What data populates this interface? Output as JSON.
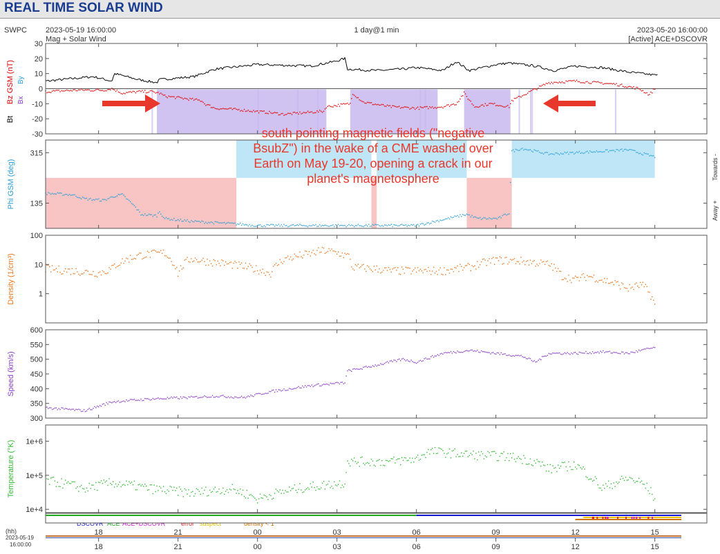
{
  "header": {
    "title": "REAL TIME SOLAR WIND"
  },
  "meta": {
    "source": "SWPC",
    "start_time": "2023-05-19 16:00:00",
    "end_time": "2023-05-20 16:00:00",
    "subtitle": "Mag + Solar Wind",
    "span": "1 day@1 min",
    "active": "[Active] ACE+DSCOVR"
  },
  "annotation": {
    "lines": [
      "south pointing magnetic fields (\"negative",
      "BsubZ\") in the wake of a CME washed over",
      "Earth on May 19-20, opening a crack in our",
      "planet's magnetosphere"
    ],
    "color": "#e8372b"
  },
  "legend": {
    "dscovr": "DSCOVR",
    "ace": "ACE",
    "ace_dscovr": "ACE+DSCOVR",
    "error": "error",
    "suspect": "suspect",
    "density": "density < 1",
    "colors": {
      "dscovr": "#1a1ad6",
      "ace": "#22aa22",
      "ace_dscovr": "#cc22cc",
      "error": "#dd2222",
      "suspect": "#e8c000",
      "density": "#d07000"
    }
  },
  "time_axis": {
    "hh_label": "(hh)",
    "date_label": "2023-05-19",
    "time_label": "16:00:00",
    "ticks": [
      "18",
      "21",
      "00",
      "03",
      "06",
      "09",
      "12",
      "15"
    ],
    "tick_hours": [
      2,
      5,
      8,
      11,
      14,
      17,
      20,
      23
    ],
    "total_hours": 24
  },
  "chart_data": [
    {
      "type": "line",
      "ylabels": [
        "Bz GSM (nT)",
        "Bt"
      ],
      "legend_labels": [
        "Bx",
        "By"
      ],
      "ylim": [
        -30,
        30
      ],
      "yticks": [
        "30",
        "20",
        "10",
        "0",
        "-10",
        "-20",
        "-30"
      ],
      "series": [
        {
          "name": "Bt",
          "color": "#000000",
          "x": [
            0,
            0.9,
            1.8,
            2.5,
            2.6,
            3.5,
            4.2,
            4.3,
            5.6,
            6.4,
            8.0,
            10.0,
            10.9,
            11.3,
            11.4,
            12.5,
            13.5,
            14.0,
            15.0,
            15.5,
            16.0,
            17.0,
            17.5,
            18.5,
            19.2,
            20.0,
            21.0,
            22.0,
            23.0,
            23.1
          ],
          "y": [
            5,
            6.5,
            8,
            5,
            10,
            6,
            4,
            6,
            8,
            13,
            16,
            15,
            18,
            20,
            13,
            12,
            13,
            14,
            12,
            18,
            12,
            16,
            17,
            15,
            12,
            15,
            14,
            11,
            9,
            9
          ]
        },
        {
          "name": "Bz",
          "color": "#e00000",
          "x": [
            0,
            1.2,
            2.2,
            2.5,
            2.9,
            3.5,
            4.0,
            4.3,
            4.5,
            5.0,
            5.9,
            6.0,
            6.4,
            7.3,
            8.5,
            9.0,
            10.5,
            10.6,
            11.5,
            11.6,
            12.0,
            13.0,
            14.0,
            15.0,
            15.5,
            15.8,
            16.2,
            16.8,
            17.5,
            17.6,
            19.0,
            20.0,
            21.5,
            22.4,
            22.8,
            23.0
          ],
          "y": [
            -2,
            -1,
            -1,
            0,
            -3,
            -2,
            -2,
            -3,
            -5,
            -6,
            -8,
            -10,
            -13,
            -14,
            -16,
            -17,
            -15,
            -12,
            -10,
            -3,
            -9,
            -12,
            -13,
            -12,
            -10,
            -3,
            -12,
            -10,
            -12,
            -8,
            4,
            5,
            3,
            0,
            -4,
            0
          ]
        }
      ],
      "shading": {
        "color": "#c8b8ee",
        "spans": [
          [
            4.2,
            10.6
          ],
          [
            11.5,
            14.8
          ],
          [
            15.8,
            17.55
          ]
        ]
      }
    },
    {
      "type": "scatter",
      "ylabel": "Phi GSM (deg)",
      "ylim": [
        45,
        360
      ],
      "yticks": [
        "315",
        "135"
      ],
      "ytick_values": [
        315,
        135
      ],
      "right_labels": [
        "Towards -",
        "Away +"
      ],
      "series": [
        {
          "name": "Phi",
          "color": "#2a9fd6",
          "x": [
            0,
            1.0,
            1.5,
            2.2,
            2.6,
            2.9,
            3.4,
            3.6,
            4.2,
            4.3,
            4.5,
            5.0,
            5.5,
            6.4,
            7.3,
            8.0,
            12.5,
            14.0,
            15.9,
            16.3,
            17.1,
            17.5,
            17.6,
            18.0,
            19.0,
            20.0,
            21.0,
            22.0,
            23.0
          ],
          "y": [
            170,
            165,
            150,
            145,
            160,
            165,
            120,
            95,
            90,
            105,
            80,
            75,
            70,
            65,
            60,
            55,
            55,
            55,
            95,
            80,
            80,
            100,
            320,
            330,
            310,
            315,
            320,
            325,
            300
          ]
        }
      ],
      "shading": {
        "away_color": "#f8c4c4",
        "towards_color": "#bfe6f7",
        "away_spans": [
          [
            0,
            7.2
          ],
          [
            12.3,
            12.5
          ],
          [
            15.9,
            17.6
          ]
        ],
        "towards_spans": [
          [
            7.2,
            12.3
          ],
          [
            12.5,
            15.9
          ],
          [
            17.6,
            23.0
          ]
        ],
        "divider": 225
      }
    },
    {
      "type": "scatter",
      "ylabel": "Density (1/cm³)",
      "scale": "log",
      "ylim": [
        0.1,
        100
      ],
      "yticks": [
        "100",
        "10",
        "1"
      ],
      "ytick_values": [
        100,
        10,
        1
      ],
      "series": [
        {
          "name": "Density",
          "color": "#e8781e",
          "x": [
            0,
            1.0,
            2.0,
            2.5,
            2.6,
            3.5,
            4.5,
            4.6,
            5.0,
            5.5,
            6.0,
            7.0,
            8.5,
            9.0,
            10.0,
            10.5,
            11.0,
            11.5,
            11.55,
            12.5,
            13.0,
            14.0,
            15.0,
            16.0,
            17.0,
            18.0,
            19.0,
            19.5,
            20.0,
            20.5,
            21.0,
            22.0,
            22.5,
            23.0
          ],
          "y": [
            7,
            6,
            5,
            7,
            9,
            20,
            25,
            20,
            5,
            16,
            13,
            10,
            5,
            15,
            23,
            30,
            25,
            18,
            8,
            7,
            6,
            6,
            6,
            8,
            14,
            13,
            10,
            4,
            3,
            4,
            3,
            1.5,
            2,
            0.4
          ]
        }
      ]
    },
    {
      "type": "scatter",
      "ylabel": "Speed (km/s)",
      "ylim": [
        300,
        600
      ],
      "yticks": [
        "600",
        "550",
        "500",
        "450",
        "400",
        "350",
        "300"
      ],
      "ytick_values": [
        600,
        550,
        500,
        450,
        400,
        350,
        300
      ],
      "series": [
        {
          "name": "Speed",
          "color": "#8a3ec7",
          "x": [
            0,
            1.5,
            2.5,
            4.0,
            5.5,
            6.4,
            7.5,
            8.5,
            10.0,
            11.3,
            11.4,
            12.0,
            13.5,
            14.0,
            15.0,
            16.0,
            17.0,
            18.0,
            18.5,
            19.0,
            20.0,
            21.0,
            22.0,
            23.0
          ],
          "y": [
            335,
            325,
            355,
            365,
            370,
            375,
            370,
            390,
            410,
            420,
            460,
            470,
            500,
            490,
            520,
            530,
            520,
            510,
            490,
            520,
            520,
            525,
            520,
            540
          ]
        }
      ]
    },
    {
      "type": "scatter",
      "ylabel": "Temperature (°K)",
      "scale": "log",
      "ylim": [
        8000,
        3000000
      ],
      "yticks": [
        "1e+6",
        "1e+5",
        "1e+4"
      ],
      "ytick_values": [
        1000000,
        100000,
        10000
      ],
      "series": [
        {
          "name": "Temperature",
          "color": "#33b833",
          "x": [
            0,
            1.5,
            2.5,
            4.0,
            5.5,
            7.0,
            8.0,
            9.5,
            11.3,
            11.4,
            13.0,
            14.0,
            14.5,
            16.0,
            17.5,
            18.5,
            19.0,
            20.0,
            20.5,
            21.0,
            22.0,
            22.5,
            23.0
          ],
          "y": [
            70000,
            40000,
            60000,
            40000,
            30000,
            40000,
            20000,
            40000,
            60000,
            250000,
            250000,
            300000,
            500000,
            400000,
            350000,
            250000,
            150000,
            200000,
            100000,
            40000,
            80000,
            60000,
            20000
          ]
        }
      ]
    }
  ]
}
